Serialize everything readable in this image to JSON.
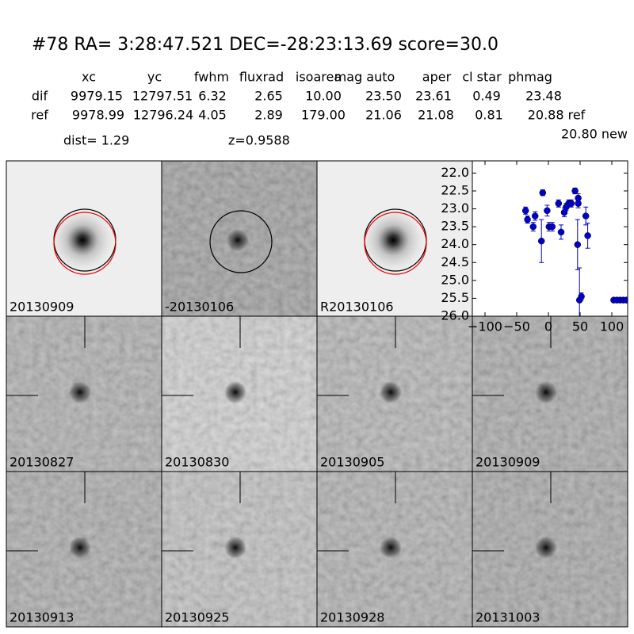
{
  "header": {
    "title": "#78   RA= 3:28:47.521 DEC=-28:23:13.69      score=30.0"
  },
  "table": {
    "columns": [
      "xc",
      "yc",
      "fwhm",
      "fluxrad",
      "isoarea",
      "mag auto",
      "aper",
      "cl star",
      "phmag"
    ],
    "rows": [
      [
        "dif",
        "9979.15",
        "12797.51",
        "6.32",
        "2.65",
        "10.00",
        "23.50",
        "23.61",
        "0.49",
        "23.48"
      ],
      [
        "ref",
        "9978.99",
        "12796.24",
        "4.05",
        "2.89",
        "179.00",
        "21.06",
        "21.08",
        "0.81",
        "20.88 ref"
      ]
    ],
    "extra": "20.80 new",
    "dist": "dist=  1.29",
    "z": "z=0.9588"
  },
  "stamps": [
    "20130909",
    "-20130106",
    "R20130106",
    "20130827",
    "20130830",
    "20130905",
    "20130909",
    "20130913",
    "20130925",
    "20130928",
    "20131003"
  ],
  "chart_data": {
    "type": "scatter",
    "color": "#0000cc",
    "x": [
      -36,
      -33,
      -24,
      -21,
      -11,
      -9,
      -2,
      1,
      6,
      16,
      20,
      25,
      28,
      32,
      36,
      42,
      46,
      47,
      47,
      49,
      52,
      59,
      62,
      103,
      108,
      113,
      118,
      123
    ],
    "values": [
      23.05,
      23.3,
      23.5,
      23.2,
      23.9,
      22.55,
      23.05,
      23.5,
      23.5,
      22.85,
      23.65,
      23.1,
      22.95,
      22.85,
      22.85,
      22.5,
      24.0,
      22.85,
      22.7,
      25.55,
      25.45,
      23.2,
      23.75,
      25.55,
      25.55,
      25.55,
      25.55,
      25.55
    ],
    "errors": [
      0.1,
      0.1,
      0.12,
      0.12,
      0.6,
      0.08,
      0.15,
      0.12,
      0.12,
      0.1,
      0.2,
      0.12,
      0.1,
      0.1,
      0.1,
      0.08,
      0.7,
      0.12,
      0.12,
      0.9,
      0.1,
      0.25,
      0.35,
      0.05,
      0.05,
      0.05,
      0.05,
      0.05
    ],
    "xlim": [
      -120,
      125
    ],
    "xticks": [
      {
        "value": -100,
        "label": "−100"
      },
      {
        "value": -50,
        "label": "−50"
      },
      0,
      50,
      100
    ],
    "ylim": [
      26.0,
      21.66
    ],
    "yticks": [
      {
        "value": 22,
        "label": "22.0"
      },
      22.5,
      {
        "value": 23,
        "label": "23.0"
      },
      23.5,
      {
        "value": 24,
        "label": "24.0"
      },
      24.5,
      {
        "value": 25,
        "label": "25.0"
      },
      25.5,
      {
        "value": 26,
        "label": "26.0"
      }
    ]
  }
}
